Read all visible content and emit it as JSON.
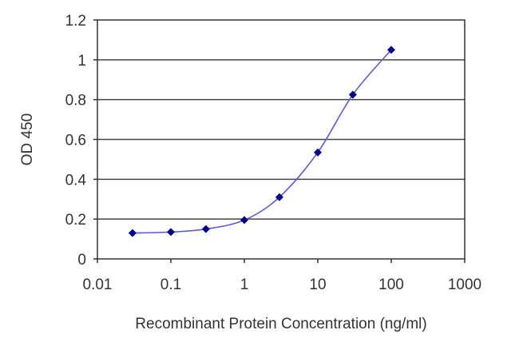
{
  "chart_data": {
    "type": "line",
    "title": "",
    "xlabel": "Recombinant Protein Concentration (ng/ml)",
    "ylabel": "OD 450",
    "x_scale": "log",
    "xlim": [
      0.01,
      1000
    ],
    "ylim": [
      0,
      1.2
    ],
    "x_ticks": [
      "0.01",
      "0.1",
      "1",
      "10",
      "100",
      "1000"
    ],
    "y_ticks": [
      "0",
      "0.2",
      "0.4",
      "0.6",
      "0.8",
      "1",
      "1.2"
    ],
    "grid": "horizontal",
    "legend": "none",
    "series": [
      {
        "x": [
          0.03,
          0.1,
          0.3,
          1,
          3,
          10,
          30,
          100
        ],
        "values": [
          0.13,
          0.135,
          0.15,
          0.195,
          0.31,
          0.535,
          0.825,
          1.05
        ],
        "color": "#00008b",
        "line_color": "#5b5bd6"
      }
    ]
  }
}
